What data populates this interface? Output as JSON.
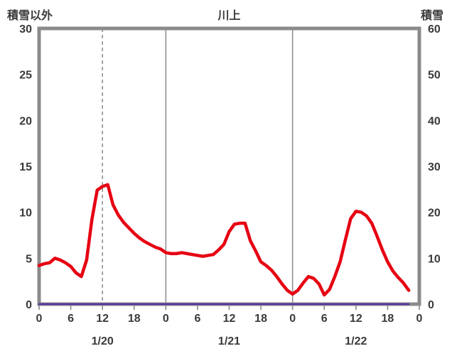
{
  "header": {
    "left_axis_title": "積雪以外",
    "title": "川上",
    "right_axis_title": "積雪"
  },
  "chart_data": {
    "type": "line",
    "title": "川上",
    "x_unit": "hour",
    "x_hours_range": [
      0,
      72
    ],
    "x_tick_interval": 6,
    "x_tick_labels": [
      "0",
      "6",
      "12",
      "18",
      "0",
      "6",
      "12",
      "18",
      "0",
      "6",
      "12",
      "18",
      "0"
    ],
    "date_labels": [
      "1/20",
      "1/21",
      "1/22"
    ],
    "left_axis": {
      "title": "積雪以外",
      "min": 0,
      "max": 30,
      "tick_step": 5,
      "ticks": [
        0,
        5,
        10,
        15,
        20,
        25,
        30
      ]
    },
    "right_axis": {
      "title": "積雪",
      "min": 0,
      "max": 60,
      "tick_step": 10,
      "ticks": [
        0,
        10,
        20,
        30,
        40,
        50,
        60
      ]
    },
    "gridlines": {
      "solid_at_hours": [
        24,
        48
      ],
      "dashed_at_hours": [
        12
      ],
      "horizontal": false
    },
    "legend": "none",
    "series": [
      {
        "name": "積雪以外",
        "axis": "left",
        "color": "#e60012",
        "line_width": 4.5,
        "x_start_hour": 0,
        "x_step_hours": 1,
        "values": [
          4.2,
          4.4,
          4.5,
          5.0,
          4.8,
          4.5,
          4.1,
          3.4,
          3.0,
          4.8,
          9.2,
          12.4,
          12.8,
          13.0,
          10.8,
          9.7,
          8.9,
          8.3,
          7.7,
          7.2,
          6.8,
          6.5,
          6.2,
          6.0,
          5.6,
          5.5,
          5.5,
          5.6,
          5.5,
          5.4,
          5.3,
          5.2,
          5.3,
          5.4,
          5.9,
          6.5,
          7.9,
          8.7,
          8.8,
          8.8,
          6.9,
          5.8,
          4.6,
          4.2,
          3.7,
          3.0,
          2.2,
          1.5,
          1.1,
          1.5,
          2.3,
          3.0,
          2.8,
          2.2,
          1.0,
          1.6,
          3.0,
          4.6,
          7.0,
          9.3,
          10.1,
          10.0,
          9.6,
          8.8,
          7.4,
          5.9,
          4.6,
          3.6,
          2.9,
          2.3,
          1.5
        ]
      },
      {
        "name": "積雪",
        "axis": "right",
        "color": "#5533a0",
        "line_width": 2.5,
        "constant_value": 0,
        "x_start_hour": 0,
        "x_end_hour": 70
      }
    ],
    "colors": {
      "frame": "#8b8b8b",
      "grid": "#909090",
      "text": "#3a3a3a",
      "background": "#ffffff",
      "series_other_than_snow": "#e60012",
      "series_snow": "#5533a0"
    }
  }
}
